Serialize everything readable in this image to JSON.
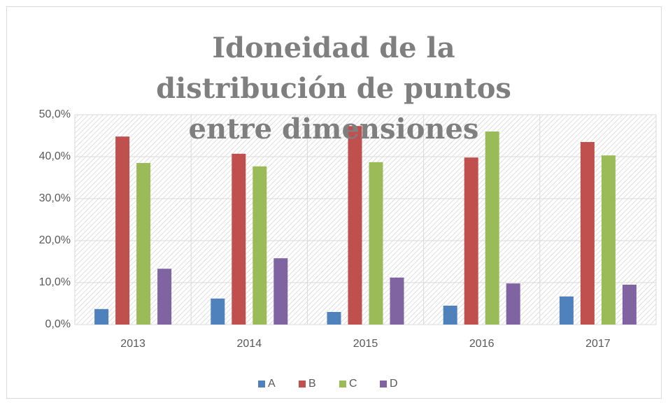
{
  "chart_data": {
    "type": "bar",
    "title": "Idoneidad de la distribución de puntos entre dimensiones",
    "categories": [
      "2013",
      "2014",
      "2015",
      "2016",
      "2017"
    ],
    "series": [
      {
        "name": "A",
        "color": "#4f81bd",
        "values": [
          3.7,
          6.2,
          3.0,
          4.5,
          6.7
        ]
      },
      {
        "name": "B",
        "color": "#c0504d",
        "values": [
          44.8,
          40.7,
          47.3,
          39.8,
          43.5
        ]
      },
      {
        "name": "C",
        "color": "#9bbb59",
        "values": [
          38.5,
          37.7,
          38.7,
          46.0,
          40.3
        ]
      },
      {
        "name": "D",
        "color": "#8064a2",
        "values": [
          13.3,
          15.8,
          11.2,
          9.8,
          9.5
        ]
      }
    ],
    "ylim": [
      0,
      50
    ],
    "yticks": [
      {
        "value": 0,
        "label": "0,0%"
      },
      {
        "value": 10,
        "label": "10,0%"
      },
      {
        "value": 20,
        "label": "20,0%"
      },
      {
        "value": 30,
        "label": "30,0%"
      },
      {
        "value": 40,
        "label": "40,0%"
      },
      {
        "value": 50,
        "label": "50,0%"
      }
    ],
    "grid": true,
    "legend": "bottom"
  }
}
